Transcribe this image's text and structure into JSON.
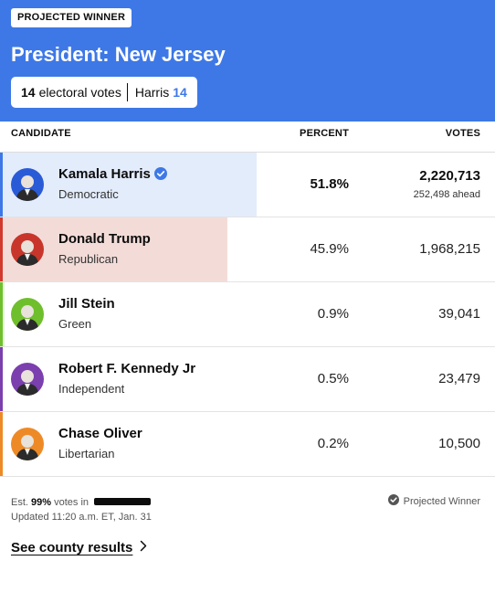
{
  "header": {
    "badge": "PROJECTED WINNER",
    "title": "President: New Jersey",
    "electoral_votes_num": "14",
    "electoral_votes_label": "electoral votes",
    "winner_name": "Harris",
    "winner_ev": "14"
  },
  "columns": {
    "candidate": "CANDIDATE",
    "percent": "PERCENT",
    "votes": "VOTES"
  },
  "candidates": [
    {
      "name": "Kamala Harris",
      "party": "Democratic",
      "percent": "51.8%",
      "votes": "2,220,713",
      "ahead": "252,498 ahead",
      "winner": true,
      "bar_fraction": 0.518,
      "bar_color": "#e3ecfb",
      "party_color": "#3d78e6",
      "avatar_bg": "#2a5bd7"
    },
    {
      "name": "Donald Trump",
      "party": "Republican",
      "percent": "45.9%",
      "votes": "1,968,215",
      "winner": false,
      "bar_fraction": 0.459,
      "bar_color": "#f3dcd8",
      "party_color": "#d23a2d",
      "avatar_bg": "#c8362b"
    },
    {
      "name": "Jill Stein",
      "party": "Green",
      "percent": "0.9%",
      "votes": "39,041",
      "winner": false,
      "bar_fraction": 0.009,
      "bar_color": "#e4f2d8",
      "party_color": "#6fbf2c",
      "avatar_bg": "#6fbf2c"
    },
    {
      "name": "Robert F. Kennedy Jr",
      "party": "Independent",
      "percent": "0.5%",
      "votes": "23,479",
      "winner": false,
      "bar_fraction": 0.005,
      "bar_color": "#ece0f4",
      "party_color": "#7b3fae",
      "avatar_bg": "#7b3fae"
    },
    {
      "name": "Chase Oliver",
      "party": "Libertarian",
      "percent": "0.2%",
      "votes": "10,500",
      "winner": false,
      "bar_fraction": 0.002,
      "bar_color": "#fbe9d6",
      "party_color": "#ee8a26",
      "avatar_bg": "#ee8a26"
    }
  ],
  "footer": {
    "est_prefix": "Est.",
    "est_pct": "99%",
    "est_suffix": "votes in",
    "updated": "Updated 11:20 a.m. ET, Jan. 31",
    "legend": "Projected Winner",
    "county_link": "See county results"
  },
  "colors": {
    "header_bg": "#3d78e6",
    "accent": "#3d78e6"
  },
  "icons": {
    "winner_check": "check-circle-icon",
    "legend_check": "check-circle-icon",
    "county_chevron": "chevron-right-icon"
  }
}
